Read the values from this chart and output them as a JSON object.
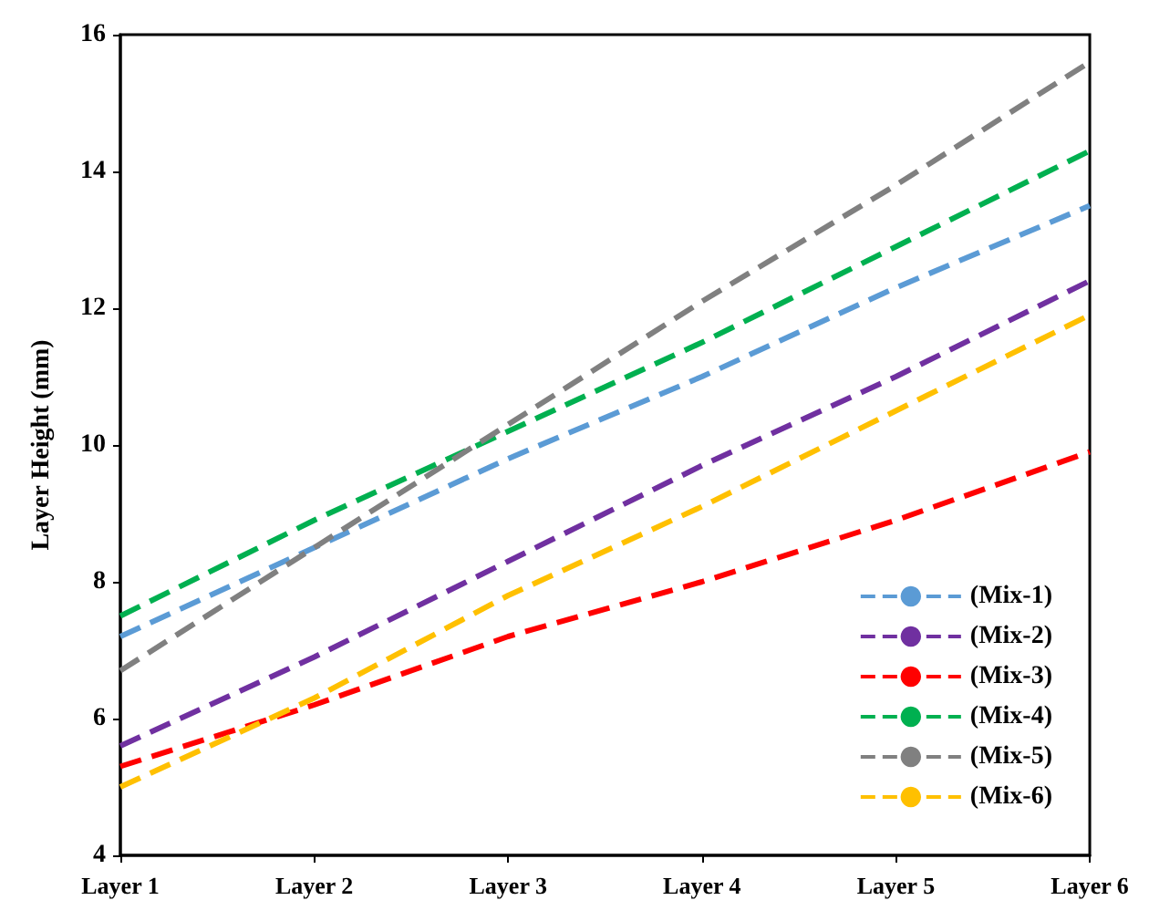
{
  "chart_data": {
    "type": "line",
    "ylabel": "Layer Height (mm)",
    "categories": [
      "Layer 1",
      "Layer 2",
      "Layer 3",
      "Layer 4",
      "Layer 5",
      "Layer 6"
    ],
    "series": [
      {
        "name": "(Mix-1)",
        "color": "#5b9bd5",
        "values": [
          7.2,
          8.5,
          9.8,
          11.0,
          12.3,
          13.5
        ]
      },
      {
        "name": "(Mix-2)",
        "color": "#7030a0",
        "values": [
          5.6,
          6.9,
          8.3,
          9.7,
          11.0,
          12.4
        ]
      },
      {
        "name": "(Mix-3)",
        "color": "#ff0000",
        "values": [
          5.3,
          6.2,
          7.2,
          8.0,
          8.9,
          9.9
        ]
      },
      {
        "name": "(Mix-4)",
        "color": "#00b050",
        "values": [
          7.5,
          8.9,
          10.2,
          11.5,
          12.9,
          14.3
        ]
      },
      {
        "name": "(Mix-5)",
        "color": "#808080",
        "values": [
          6.7,
          8.5,
          10.3,
          12.1,
          13.8,
          15.6
        ]
      },
      {
        "name": "(Mix-6)",
        "color": "#ffc000",
        "values": [
          5.0,
          6.3,
          7.8,
          9.1,
          10.5,
          11.9
        ]
      }
    ],
    "ylim": [
      4,
      16
    ],
    "yticks": [
      4,
      6,
      8,
      10,
      12,
      14,
      16
    ],
    "grid": false,
    "legend": "bottom right",
    "marker": "none",
    "line_style": "dashed"
  }
}
